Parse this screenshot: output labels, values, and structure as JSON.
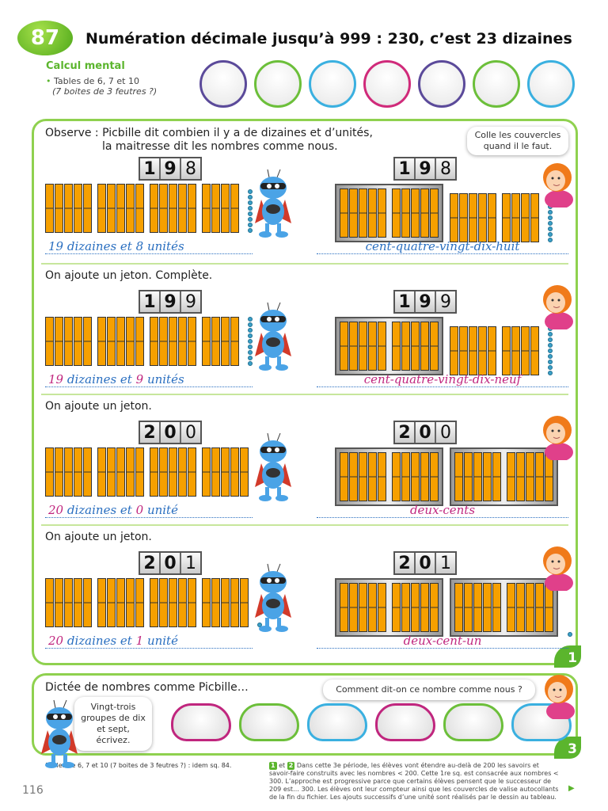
{
  "header": {
    "lesson_number": "87",
    "title": "Numération décimale jusqu’à 999 : 230, c’est 23 dizaines"
  },
  "calcul_mental": {
    "title": "Calcul mental",
    "line1": "Tables de 6, 7 et 10",
    "line2": "(7 boites de 3 feutres ?)",
    "circle_colors": [
      "#5b4a9a",
      "#6cbf3a",
      "#3ab0e0",
      "#d02a7a",
      "#5b4a9a",
      "#6cbf3a",
      "#3ab0e0"
    ]
  },
  "exercise1": {
    "number": "1",
    "intro_line1": "Observe : Picbille dit combien il y a de dizaines et d’unités,",
    "intro_line2": "la maitresse dit les nombres comme nous.",
    "teacher_bubble": "Colle les couvercles quand il le faut.",
    "rows": [
      {
        "label": "",
        "digits": [
          "1",
          "9",
          "8"
        ],
        "tens": 19,
        "units": 8,
        "boxes": 1,
        "left_answer": {
          "tens": "19",
          "a": "dizaines et",
          "units": "8",
          "b": "unités"
        },
        "right_answer": "cent-quatre-vingt-dix-huit",
        "filled": false
      },
      {
        "label": "On ajoute un jeton. Complète.",
        "digits": [
          "1",
          "9",
          "9"
        ],
        "tens": 19,
        "units": 9,
        "boxes": 1,
        "left_answer": {
          "tens": "19",
          "a": "dizaines et",
          "units": "9",
          "b": "unités"
        },
        "right_answer": "cent-quatre-vingt-dix-neuf",
        "filled": true
      },
      {
        "label": "On ajoute un jeton.",
        "digits": [
          "2",
          "0",
          "0"
        ],
        "tens": 20,
        "units": 0,
        "boxes": 2,
        "left_answer": {
          "tens": "20",
          "a": "dizaines et",
          "units": "0",
          "b": "unité"
        },
        "right_answer": "deux-cents",
        "filled": true
      },
      {
        "label": "On ajoute un jeton.",
        "digits": [
          "2",
          "0",
          "1"
        ],
        "tens": 20,
        "units": 1,
        "boxes": 2,
        "left_answer": {
          "tens": "20",
          "a": "dizaines et",
          "units": "1",
          "b": "unité"
        },
        "right_answer": "deux-cent-un",
        "filled": true
      }
    ]
  },
  "exercise3": {
    "number": "3",
    "title": "Dictée de nombres comme Picbille…",
    "picbille_bubble": "Vingt-trois groupes de dix et sept, écrivez.",
    "teacher_bubble": "Comment dit-on ce nombre comme nous ?",
    "cloud_colors": [
      "#c0267e",
      "#6cbf3a",
      "#3ab0e0",
      "#c0267e",
      "#6cbf3a",
      "#3ab0e0"
    ]
  },
  "footer": {
    "left": "Tables de 6, 7 et 10 (7 boites de 3 feutres ?) : idem sq. 84.",
    "badge1": "1",
    "et": "et",
    "badge2": "2",
    "right": "Dans cette 3e période, les élèves vont étendre au-delà de 200 les savoirs et savoir-faire construits avec les nombres < 200. Cette 1re sq. est consacrée aux nombres < 300. L’approche est progressive parce que certains élèves pensent que le successeur de 209 est… 300. Les élèves ont leur compteur ainsi que les couvercles de valise autocollants de la fin du fichier. Les ajouts successifs d’une unité sont réalisés par le dessin au tableau.",
    "page_number": "116",
    "arrow": "▶"
  }
}
